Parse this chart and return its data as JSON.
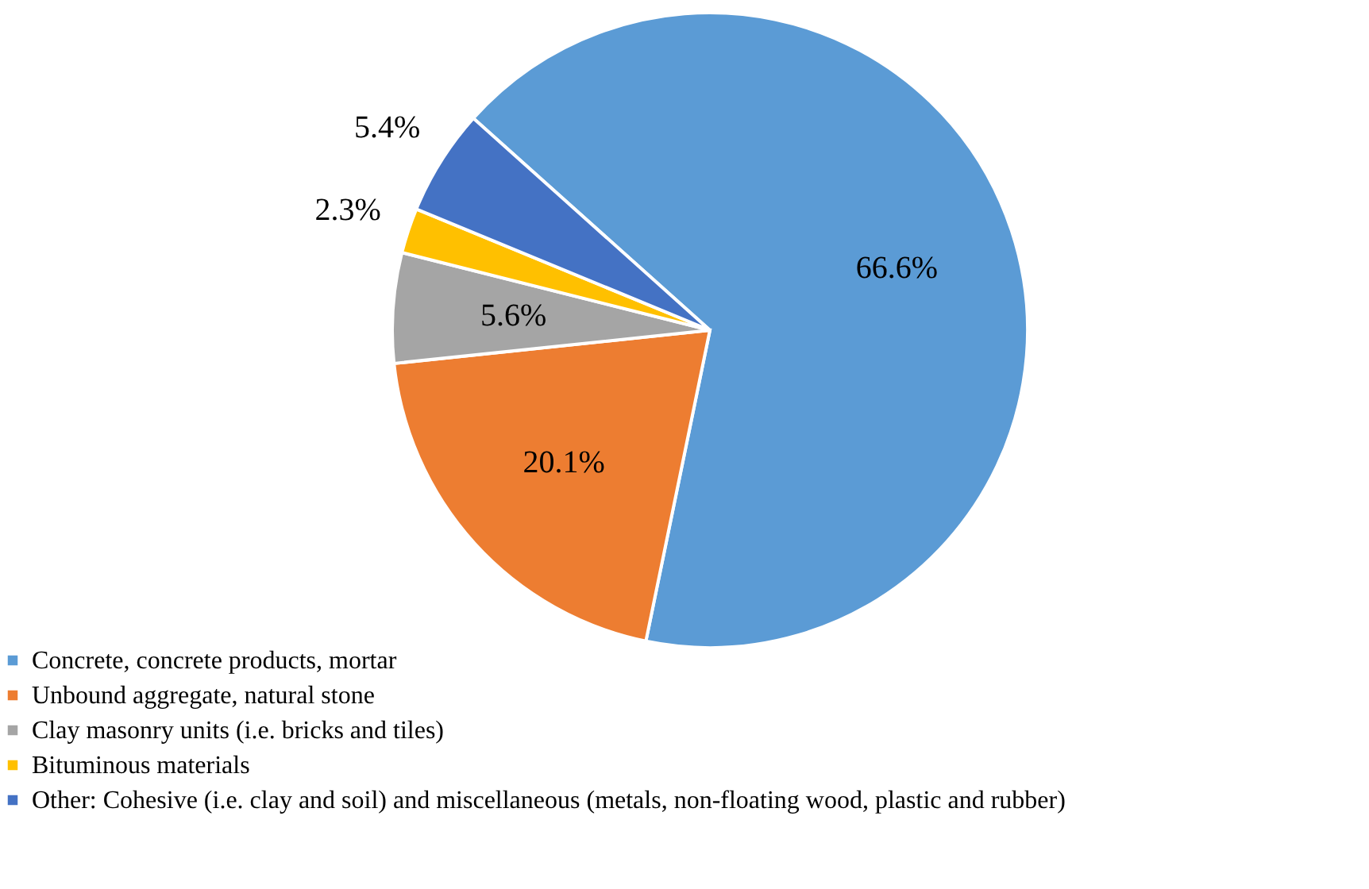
{
  "chart_data": {
    "type": "pie",
    "categories": [
      "Concrete, concrete products, mortar",
      "Unbound aggregate, natural stone",
      "Clay masonry units (i.e. bricks and tiles)",
      "Bituminous materials",
      "Other: Cohesive (i.e. clay and soil) and miscellaneous (metals, non-floating wood, plastic and rubber)"
    ],
    "values": [
      66.6,
      20.1,
      5.6,
      2.3,
      5.4
    ],
    "colors": [
      "#5b9bd5",
      "#ed7d31",
      "#a5a5a5",
      "#ffc000",
      "#4472c4"
    ],
    "value_labels": [
      "66.6%",
      "20.1%",
      "5.6%",
      "2.3%",
      "5.4%"
    ],
    "legend": "bottom left"
  }
}
